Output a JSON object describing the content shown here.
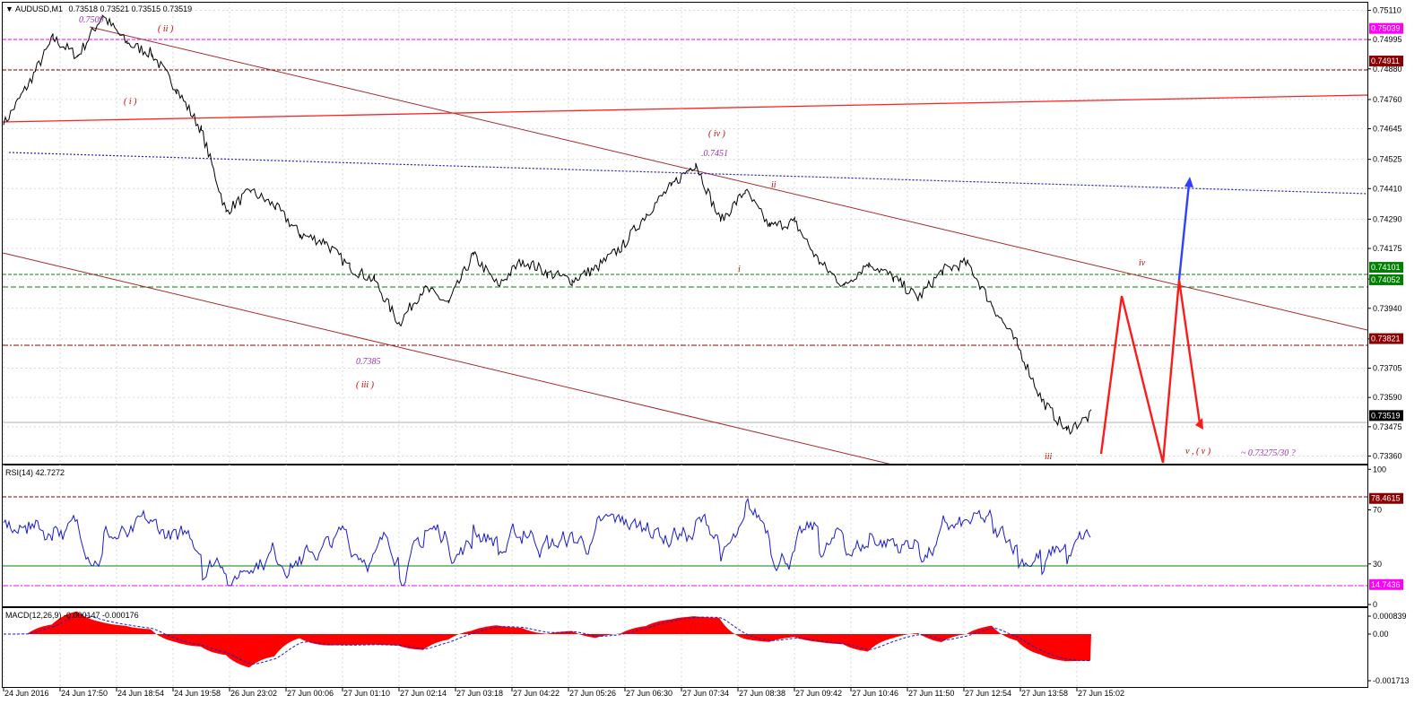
{
  "main": {
    "symbol_label": "AUDUSD,M1",
    "ohlc_label": "0.73518 0.73521 0.73515 0.73519",
    "y_ticks": [
      "0.75110",
      "0.74995",
      "0.74880",
      "0.74760",
      "0.74645",
      "0.74525",
      "0.74410",
      "0.74290",
      "0.74175",
      "0.74055",
      "0.73940",
      "0.73820",
      "0.73705",
      "0.73590",
      "0.73475",
      "0.73360"
    ],
    "price_tags": [
      {
        "label": "0.75039",
        "color": "#ff00ff",
        "text_color": "#ffffff"
      },
      {
        "label": "0.74911",
        "color": "#8b0000",
        "text_color": "#ffffff"
      },
      {
        "label": "0.74101",
        "color": "#008000",
        "text_color": "#ffffff"
      },
      {
        "label": "0.74052",
        "color": "#008000",
        "text_color": "#ffffff"
      },
      {
        "label": "0.73821",
        "color": "#8b0000",
        "text_color": "#ffffff"
      },
      {
        "label": "0.73519",
        "color": "#000000",
        "text_color": "#ffffff"
      }
    ],
    "annotations": [
      {
        "text": "0.7509",
        "color": "#9b30b0"
      },
      {
        "text": "( ii )",
        "color": "#cc0000"
      },
      {
        "text": "( i )",
        "color": "#cc0000"
      },
      {
        "text": "( iv )",
        "color": "#cc0000"
      },
      {
        "text": ".0.7451",
        "color": "#9b30b0"
      },
      {
        "text": "ii",
        "color": "#cc0000"
      },
      {
        "text": "i",
        "color": "#cc0000"
      },
      {
        "text": "0.7385",
        "color": "#9b30b0"
      },
      {
        "text": "( iii )",
        "color": "#cc0000"
      },
      {
        "text": "iv",
        "color": "#cc0000"
      },
      {
        "text": "iii",
        "color": "#cc0000"
      },
      {
        "text": "v ,  ( v )",
        "color": "#cc0000"
      },
      {
        "text": "~ 0.73275/30  ?",
        "color": "#9b30b0"
      }
    ]
  },
  "rsi": {
    "label": "RSI(14) 42.7272",
    "y_ticks": [
      "100",
      "70",
      "30",
      "0"
    ],
    "tags": [
      {
        "label": "78.4615",
        "color": "#8b0000",
        "text_color": "#ffffff"
      },
      {
        "label": "14.7436",
        "color": "#ff00ff",
        "text_color": "#ffffff"
      }
    ]
  },
  "macd": {
    "label": "MACD(12,26,9) -0.000147 -0.000176",
    "y_ticks": [
      "0.000839",
      "0.00",
      "-0.001713"
    ]
  },
  "x_ticks": [
    "24 Jun 2016",
    "24 Jun 17:50",
    "24 Jun 18:54",
    "24 Jun 19:58",
    "26 Jun 23:02",
    "27 Jun 00:06",
    "27 Jun 01:10",
    "27 Jun 02:14",
    "27 Jun 03:18",
    "27 Jun 04:22",
    "27 Jun 05:26",
    "27 Jun 06:30",
    "27 Jun 07:34",
    "27 Jun 08:38",
    "27 Jun 09:42",
    "27 Jun 10:46",
    "27 Jun 11:50",
    "27 Jun 12:54",
    "27 Jun 13:58",
    "27 Jun 15:02"
  ],
  "chart_data": {
    "type": "line",
    "title": "AUDUSD,M1",
    "ylim": [
      0.7333,
      0.7514
    ],
    "series": [
      {
        "name": "AUDUSD,M1",
        "values": [
          0.7466,
          0.7482,
          0.75,
          0.7493,
          0.7509,
          0.7498,
          0.7494,
          0.748,
          0.7464,
          0.7432,
          0.744,
          0.7434,
          0.7423,
          0.742,
          0.741,
          0.7405,
          0.7388,
          0.7402,
          0.7396,
          0.7415,
          0.7403,
          0.7413,
          0.7408,
          0.7405,
          0.741,
          0.7418,
          0.7431,
          0.7442,
          0.7451,
          0.7428,
          0.744,
          0.7426,
          0.7428,
          0.7412,
          0.7403,
          0.7412,
          0.7406,
          0.7398,
          0.7409,
          0.7412,
          0.7395,
          0.738,
          0.7358,
          0.7346,
          0.7352
        ]
      }
    ],
    "levels": [
      0.75039,
      0.74911,
      0.74101,
      0.74052,
      0.73821,
      0.73519
    ],
    "projection": [
      0.73519,
      0.74,
      0.7336,
      0.7408,
      0.7348
    ]
  }
}
